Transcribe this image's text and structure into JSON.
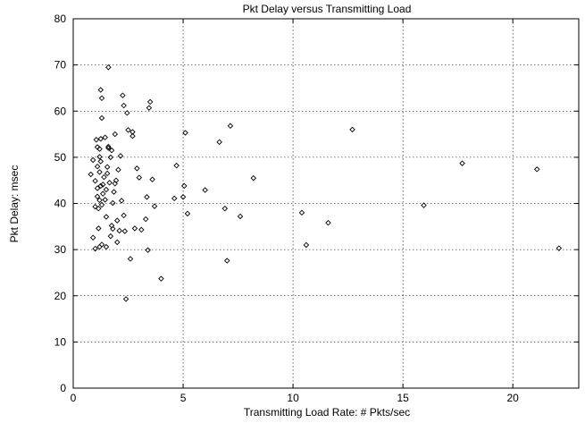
{
  "chart_data": {
    "type": "scatter",
    "title": "Pkt Delay versus Transmitting Load",
    "xlabel": "Transmitting Load Rate: # Pkts/sec",
    "ylabel": "Pkt Delay: msec",
    "xlim": [
      0,
      23
    ],
    "ylim": [
      0,
      80
    ],
    "xticks": [
      0,
      5,
      10,
      15,
      20
    ],
    "yticks": [
      0,
      10,
      20,
      30,
      40,
      50,
      60,
      70,
      80
    ],
    "grid": true,
    "marker": "diamond",
    "series": [
      {
        "points": [
          [
            0.8,
            46.3
          ],
          [
            0.9,
            32.6
          ],
          [
            0.9,
            49.4
          ],
          [
            1.0,
            30.2
          ],
          [
            1.0,
            39.3
          ],
          [
            1.0,
            44.9
          ],
          [
            1.05,
            53.8
          ],
          [
            1.1,
            41.5
          ],
          [
            1.1,
            43.3
          ],
          [
            1.1,
            52.2
          ],
          [
            1.1,
            48.0
          ],
          [
            1.15,
            34.6
          ],
          [
            1.15,
            38.9
          ],
          [
            1.2,
            30.6
          ],
          [
            1.2,
            40.7
          ],
          [
            1.2,
            46.8
          ],
          [
            1.2,
            50.1
          ],
          [
            1.2,
            51.8
          ],
          [
            1.25,
            43.8
          ],
          [
            1.25,
            49.1
          ],
          [
            1.25,
            54.0
          ],
          [
            1.25,
            64.6
          ],
          [
            1.3,
            31.1
          ],
          [
            1.3,
            39.7
          ],
          [
            1.3,
            58.5
          ],
          [
            1.3,
            62.8
          ],
          [
            1.35,
            42.1
          ],
          [
            1.35,
            44.1
          ],
          [
            1.4,
            45.7
          ],
          [
            1.45,
            54.3
          ],
          [
            1.45,
            40.8
          ],
          [
            1.5,
            37.1
          ],
          [
            1.5,
            30.6
          ],
          [
            1.5,
            43.0
          ],
          [
            1.55,
            47.9
          ],
          [
            1.55,
            46.5
          ],
          [
            1.6,
            52.3
          ],
          [
            1.6,
            52.0
          ],
          [
            1.6,
            69.5
          ],
          [
            1.65,
            44.5
          ],
          [
            1.7,
            50.0
          ],
          [
            1.7,
            32.9
          ],
          [
            1.75,
            35.2
          ],
          [
            1.75,
            51.5
          ],
          [
            1.8,
            34.5
          ],
          [
            1.8,
            40.1
          ],
          [
            1.85,
            42.5
          ],
          [
            1.9,
            55.0
          ],
          [
            1.9,
            44.3
          ],
          [
            1.95,
            45.0
          ],
          [
            2.0,
            31.6
          ],
          [
            2.0,
            36.3
          ],
          [
            2.05,
            47.3
          ],
          [
            2.1,
            34.1
          ],
          [
            2.15,
            50.3
          ],
          [
            2.2,
            40.6
          ],
          [
            2.25,
            63.4
          ],
          [
            2.3,
            37.4
          ],
          [
            2.3,
            61.2
          ],
          [
            2.35,
            34.0
          ],
          [
            2.4,
            19.3
          ],
          [
            2.45,
            59.6
          ],
          [
            2.5,
            55.9
          ],
          [
            2.6,
            28.0
          ],
          [
            2.7,
            54.6
          ],
          [
            2.7,
            55.5
          ],
          [
            2.8,
            34.6
          ],
          [
            2.9,
            47.6
          ],
          [
            3.0,
            45.6
          ],
          [
            3.1,
            34.3
          ],
          [
            3.3,
            36.6
          ],
          [
            3.35,
            41.4
          ],
          [
            3.4,
            29.9
          ],
          [
            3.45,
            60.7
          ],
          [
            3.5,
            62.0
          ],
          [
            3.6,
            45.2
          ],
          [
            3.7,
            39.4
          ],
          [
            4.0,
            23.7
          ],
          [
            4.6,
            41.1
          ],
          [
            4.7,
            48.2
          ],
          [
            5.0,
            41.4
          ],
          [
            5.05,
            43.8
          ],
          [
            5.1,
            55.3
          ],
          [
            5.2,
            37.8
          ],
          [
            6.0,
            42.9
          ],
          [
            6.65,
            53.3
          ],
          [
            6.9,
            38.9
          ],
          [
            7.0,
            27.6
          ],
          [
            7.15,
            56.8
          ],
          [
            7.6,
            37.2
          ],
          [
            8.2,
            45.5
          ],
          [
            10.4,
            38.0
          ],
          [
            10.6,
            31.0
          ],
          [
            11.6,
            35.8
          ],
          [
            12.7,
            56.0
          ],
          [
            15.95,
            39.6
          ],
          [
            17.7,
            48.7
          ],
          [
            21.1,
            47.4
          ],
          [
            22.1,
            30.3
          ]
        ]
      }
    ]
  }
}
